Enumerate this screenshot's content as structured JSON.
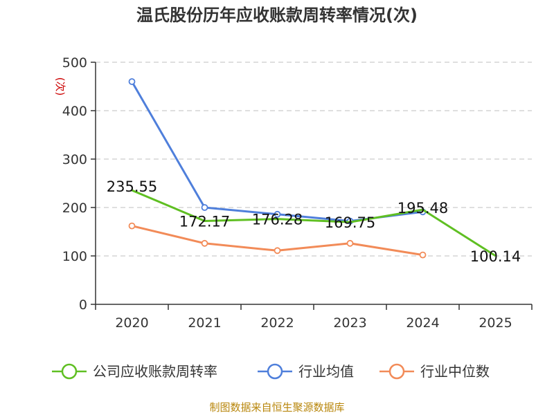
{
  "title": "温氏股份历年应收账款周转率情况(次)",
  "unit_label": "(次)",
  "source": "制图数据来自恒生聚源数据库",
  "colors": {
    "company": "#5fbf22",
    "industry_avg": "#4f7fdb",
    "industry_median": "#f28b58",
    "axis": "#333333",
    "grid": "#cccccc"
  },
  "chart_data": {
    "type": "line",
    "title": "温氏股份历年应收账款周转率情况(次)",
    "ylabel": "(次)",
    "xlabel": "",
    "categories": [
      "2020",
      "2021",
      "2022",
      "2023",
      "2024",
      "2025"
    ],
    "ylim": [
      0,
      500
    ],
    "yticks": [
      0,
      100,
      200,
      300,
      400,
      500
    ],
    "grid": true,
    "legend_position": "bottom",
    "series": [
      {
        "key": "company",
        "name": "公司应收账款周转率",
        "values": [
          235.55,
          172.17,
          176.28,
          169.75,
          195.48,
          100.14
        ],
        "labels": [
          "235.55",
          "172.17",
          "176.28",
          "169.75",
          "195.48",
          "100.14"
        ],
        "markers": [
          false,
          false,
          false,
          false,
          false,
          false
        ]
      },
      {
        "key": "industry_avg",
        "name": "行业均值",
        "values": [
          460,
          200,
          186,
          172,
          191,
          null
        ],
        "markers": [
          true,
          true,
          true,
          true,
          true,
          false
        ]
      },
      {
        "key": "industry_median",
        "name": "行业中位数",
        "values": [
          162,
          126,
          111,
          126,
          102,
          null
        ],
        "markers": [
          true,
          true,
          true,
          true,
          true,
          false
        ]
      }
    ]
  }
}
